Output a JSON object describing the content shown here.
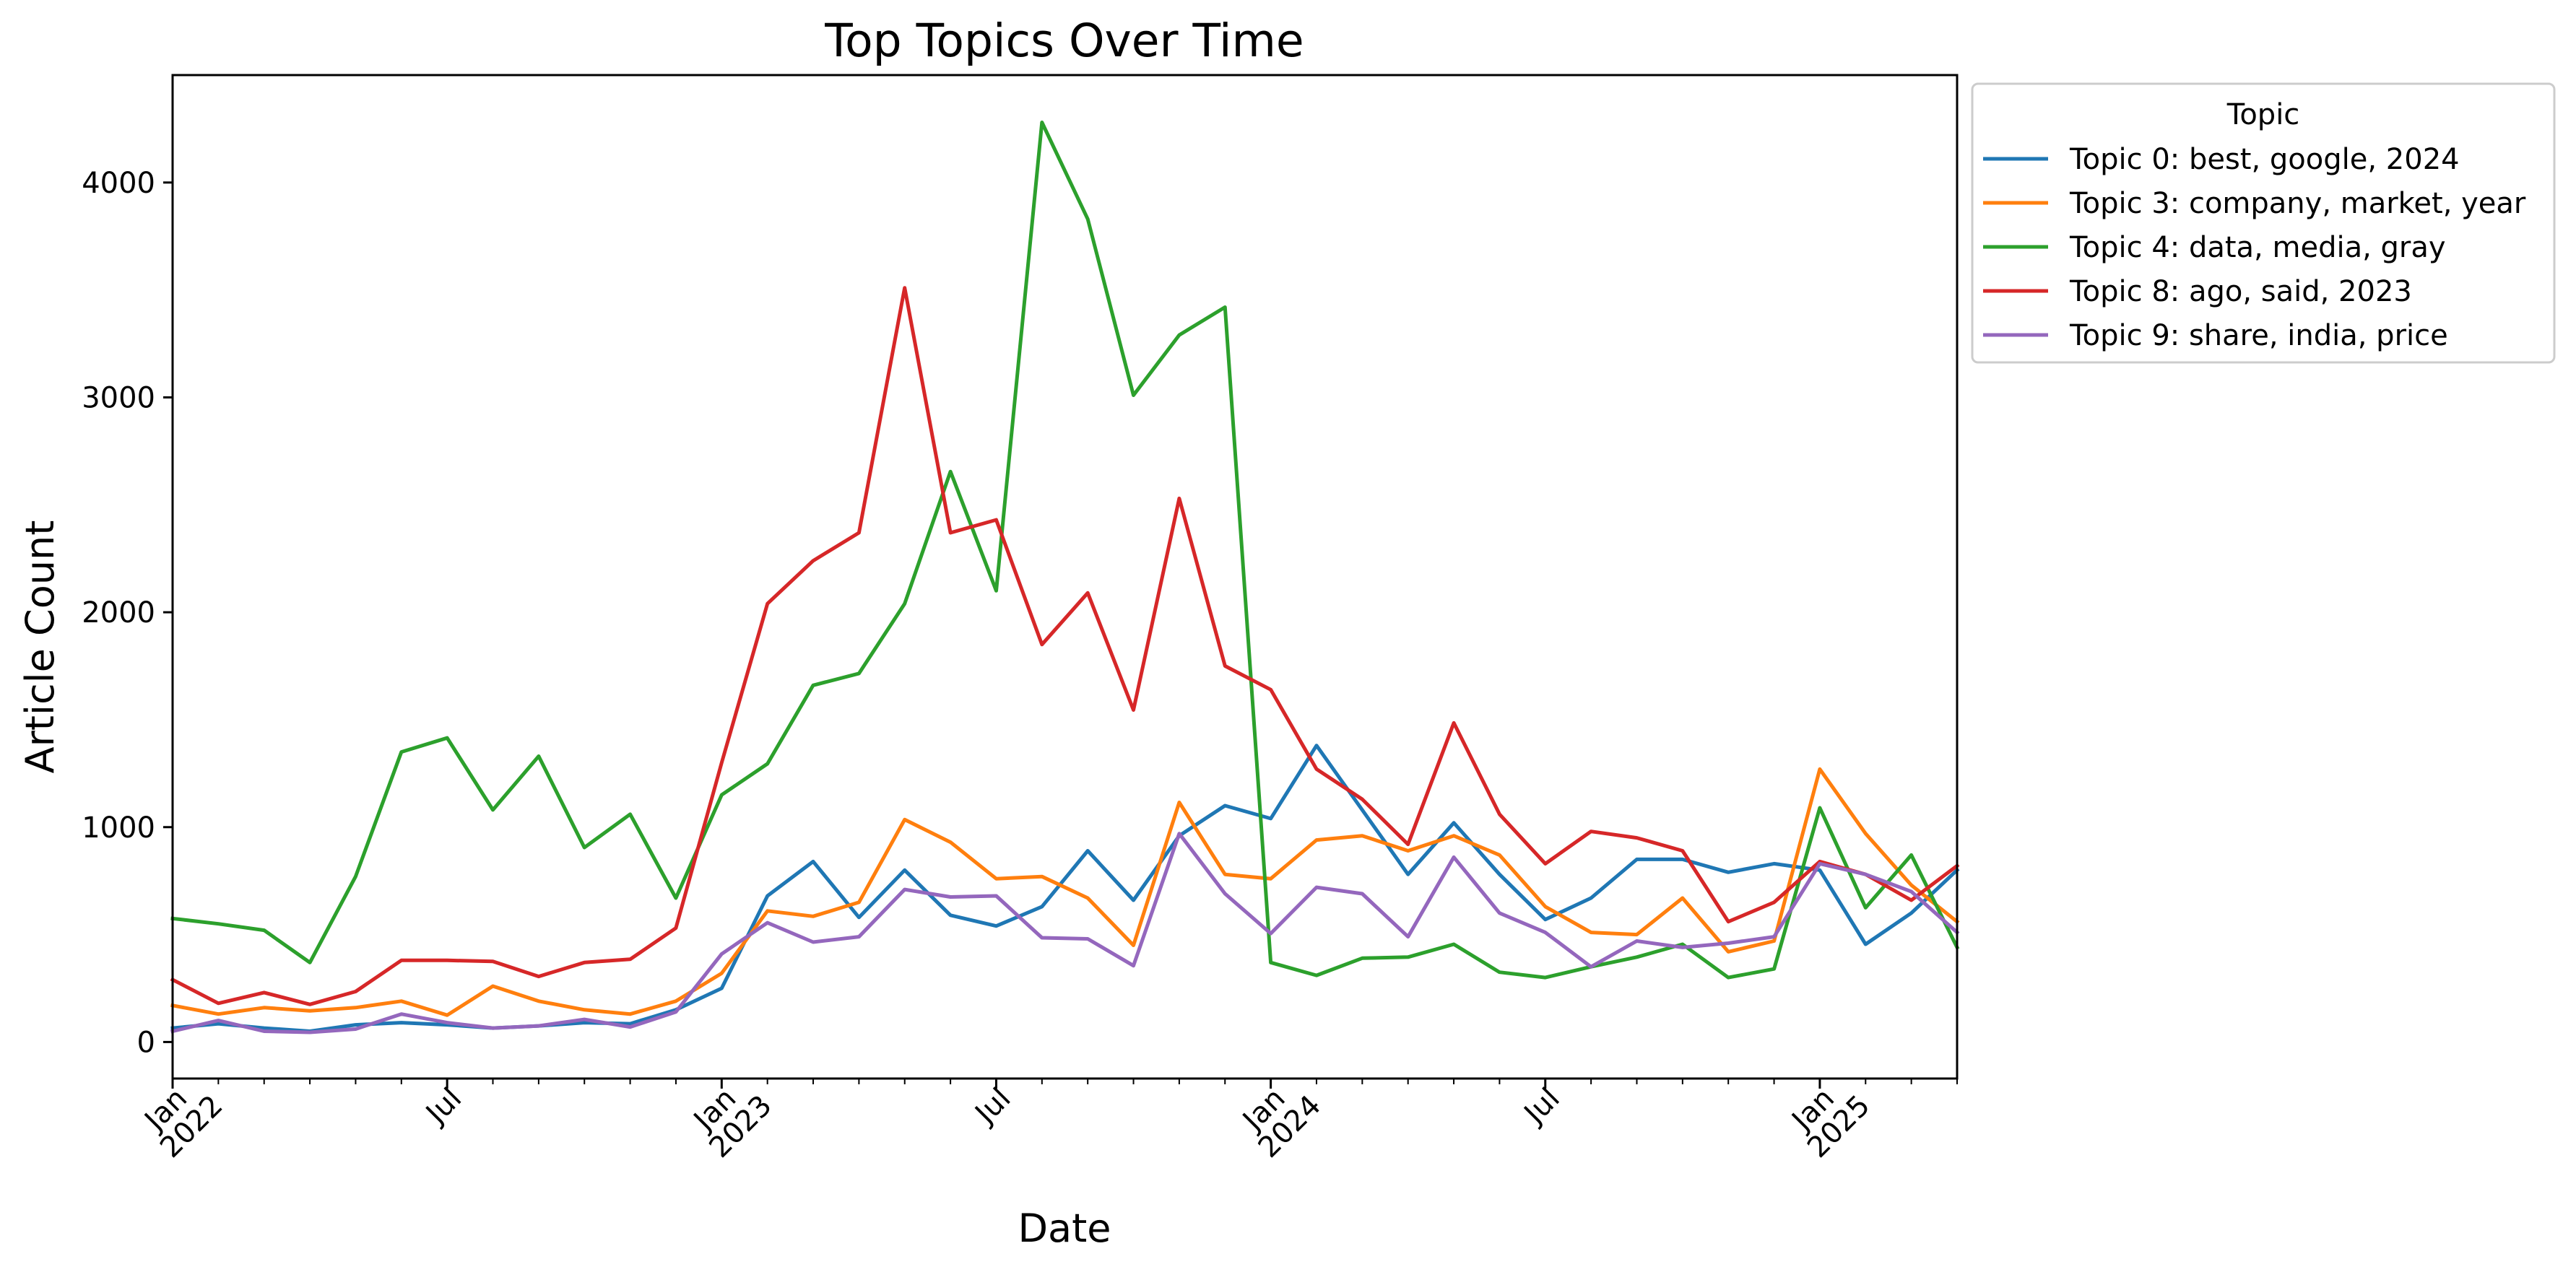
{
  "chart_data": {
    "type": "line",
    "title": "Top Topics Over Time",
    "xlabel": "Date",
    "ylabel": "Article Count",
    "xlim": [
      "2022-01",
      "2025-04"
    ],
    "ylim": [
      -170,
      4500
    ],
    "y_ticks": [
      0,
      1000,
      2000,
      3000,
      4000
    ],
    "x_ticks": [
      {
        "date": "2022-01",
        "line1": "Jan",
        "line2": "2022"
      },
      {
        "date": "2022-07",
        "line1": "Jul",
        "line2": ""
      },
      {
        "date": "2023-01",
        "line1": "Jan",
        "line2": "2023"
      },
      {
        "date": "2023-07",
        "line1": "Jul",
        "line2": ""
      },
      {
        "date": "2024-01",
        "line1": "Jan",
        "line2": "2024"
      },
      {
        "date": "2024-07",
        "line1": "Jul",
        "line2": ""
      },
      {
        "date": "2025-01",
        "line1": "Jan",
        "line2": "2025"
      }
    ],
    "grid": false,
    "legend": {
      "title": "Topic",
      "placement": "outside top-right"
    },
    "x": [
      "2022-01",
      "2022-02",
      "2022-03",
      "2022-04",
      "2022-05",
      "2022-06",
      "2022-07",
      "2022-08",
      "2022-09",
      "2022-10",
      "2022-11",
      "2022-12",
      "2023-01",
      "2023-02",
      "2023-03",
      "2023-04",
      "2023-05",
      "2023-06",
      "2023-07",
      "2023-08",
      "2023-09",
      "2023-10",
      "2023-11",
      "2023-12",
      "2024-01",
      "2024-02",
      "2024-03",
      "2024-04",
      "2024-05",
      "2024-06",
      "2024-07",
      "2024-08",
      "2024-09",
      "2024-10",
      "2024-11",
      "2024-12",
      "2025-01",
      "2025-02",
      "2025-03",
      "2025-04"
    ],
    "series": [
      {
        "name": "Topic 0: best, google, 2024",
        "color": "#1f77b4",
        "values": [
          65,
          85,
          65,
          50,
          80,
          90,
          80,
          65,
          75,
          90,
          85,
          150,
          250,
          680,
          840,
          580,
          800,
          590,
          540,
          630,
          890,
          660,
          960,
          1100,
          1040,
          1380,
          1080,
          780,
          1020,
          780,
          570,
          670,
          850,
          850,
          790,
          830,
          800,
          455,
          600,
          800
        ]
      },
      {
        "name": "Topic 3: company, market, year",
        "color": "#ff7f0e",
        "values": [
          170,
          130,
          160,
          145,
          160,
          190,
          125,
          260,
          190,
          150,
          130,
          190,
          320,
          610,
          585,
          650,
          1035,
          930,
          760,
          770,
          670,
          450,
          1115,
          780,
          760,
          940,
          960,
          890,
          960,
          870,
          630,
          510,
          500,
          670,
          420,
          470,
          1270,
          970,
          730,
          560
        ]
      },
      {
        "name": "Topic 4: data, media, gray",
        "color": "#2ca02c",
        "values": [
          575,
          550,
          520,
          370,
          770,
          1350,
          1415,
          1080,
          1330,
          905,
          1060,
          670,
          1150,
          1295,
          1660,
          1715,
          2040,
          2655,
          2100,
          4280,
          3830,
          3010,
          3290,
          3420,
          370,
          310,
          390,
          395,
          455,
          325,
          300,
          350,
          395,
          455,
          300,
          340,
          1090,
          625,
          870,
          440
        ]
      },
      {
        "name": "Topic 8: ago, said, 2023",
        "color": "#d62728",
        "values": [
          290,
          180,
          230,
          175,
          235,
          380,
          380,
          375,
          305,
          370,
          385,
          530,
          1300,
          2040,
          2240,
          2370,
          3510,
          2370,
          2430,
          1850,
          2090,
          1545,
          2530,
          1750,
          1640,
          1270,
          1130,
          920,
          1485,
          1060,
          830,
          980,
          950,
          890,
          560,
          650,
          840,
          780,
          660,
          820
        ]
      },
      {
        "name": "Topic 9: share, india, price",
        "color": "#9467bd",
        "values": [
          50,
          100,
          50,
          45,
          60,
          130,
          90,
          65,
          75,
          105,
          70,
          140,
          410,
          555,
          465,
          490,
          710,
          675,
          680,
          485,
          480,
          355,
          970,
          690,
          505,
          720,
          690,
          490,
          860,
          600,
          510,
          350,
          470,
          440,
          460,
          490,
          830,
          780,
          700,
          510
        ]
      }
    ]
  }
}
